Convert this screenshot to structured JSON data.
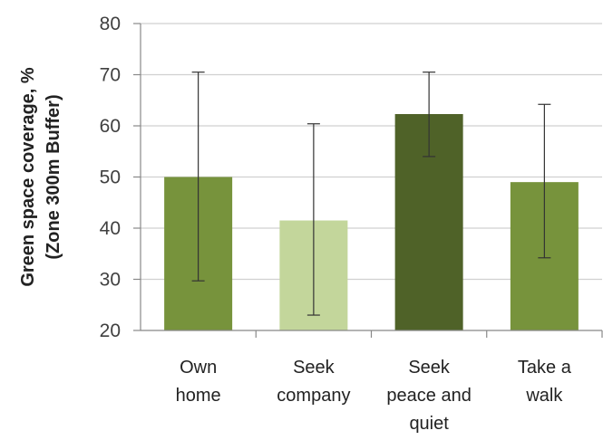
{
  "chart_data": {
    "type": "bar",
    "title": "",
    "xlabel": "",
    "ylabel_lines": [
      "Green space coverage, %",
      "(Zone 300m Buffer)"
    ],
    "ylim": [
      20,
      80
    ],
    "yticks": [
      20,
      30,
      40,
      50,
      60,
      70,
      80
    ],
    "grid": true,
    "legend": "none",
    "categories": [
      {
        "lines": [
          "Own",
          "home"
        ]
      },
      {
        "lines": [
          "Seek",
          "company"
        ]
      },
      {
        "lines": [
          "Seek",
          "peace and",
          "quiet"
        ]
      },
      {
        "lines": [
          "Take a",
          "walk"
        ]
      }
    ],
    "values": [
      50,
      41.5,
      62.3,
      49
    ],
    "error_low": [
      29.7,
      23,
      54,
      34.2
    ],
    "error_high": [
      70.5,
      60.4,
      70.5,
      64.2
    ],
    "colors": [
      "#77933c",
      "#c3d69b",
      "#4f6228",
      "#77933c"
    ]
  }
}
